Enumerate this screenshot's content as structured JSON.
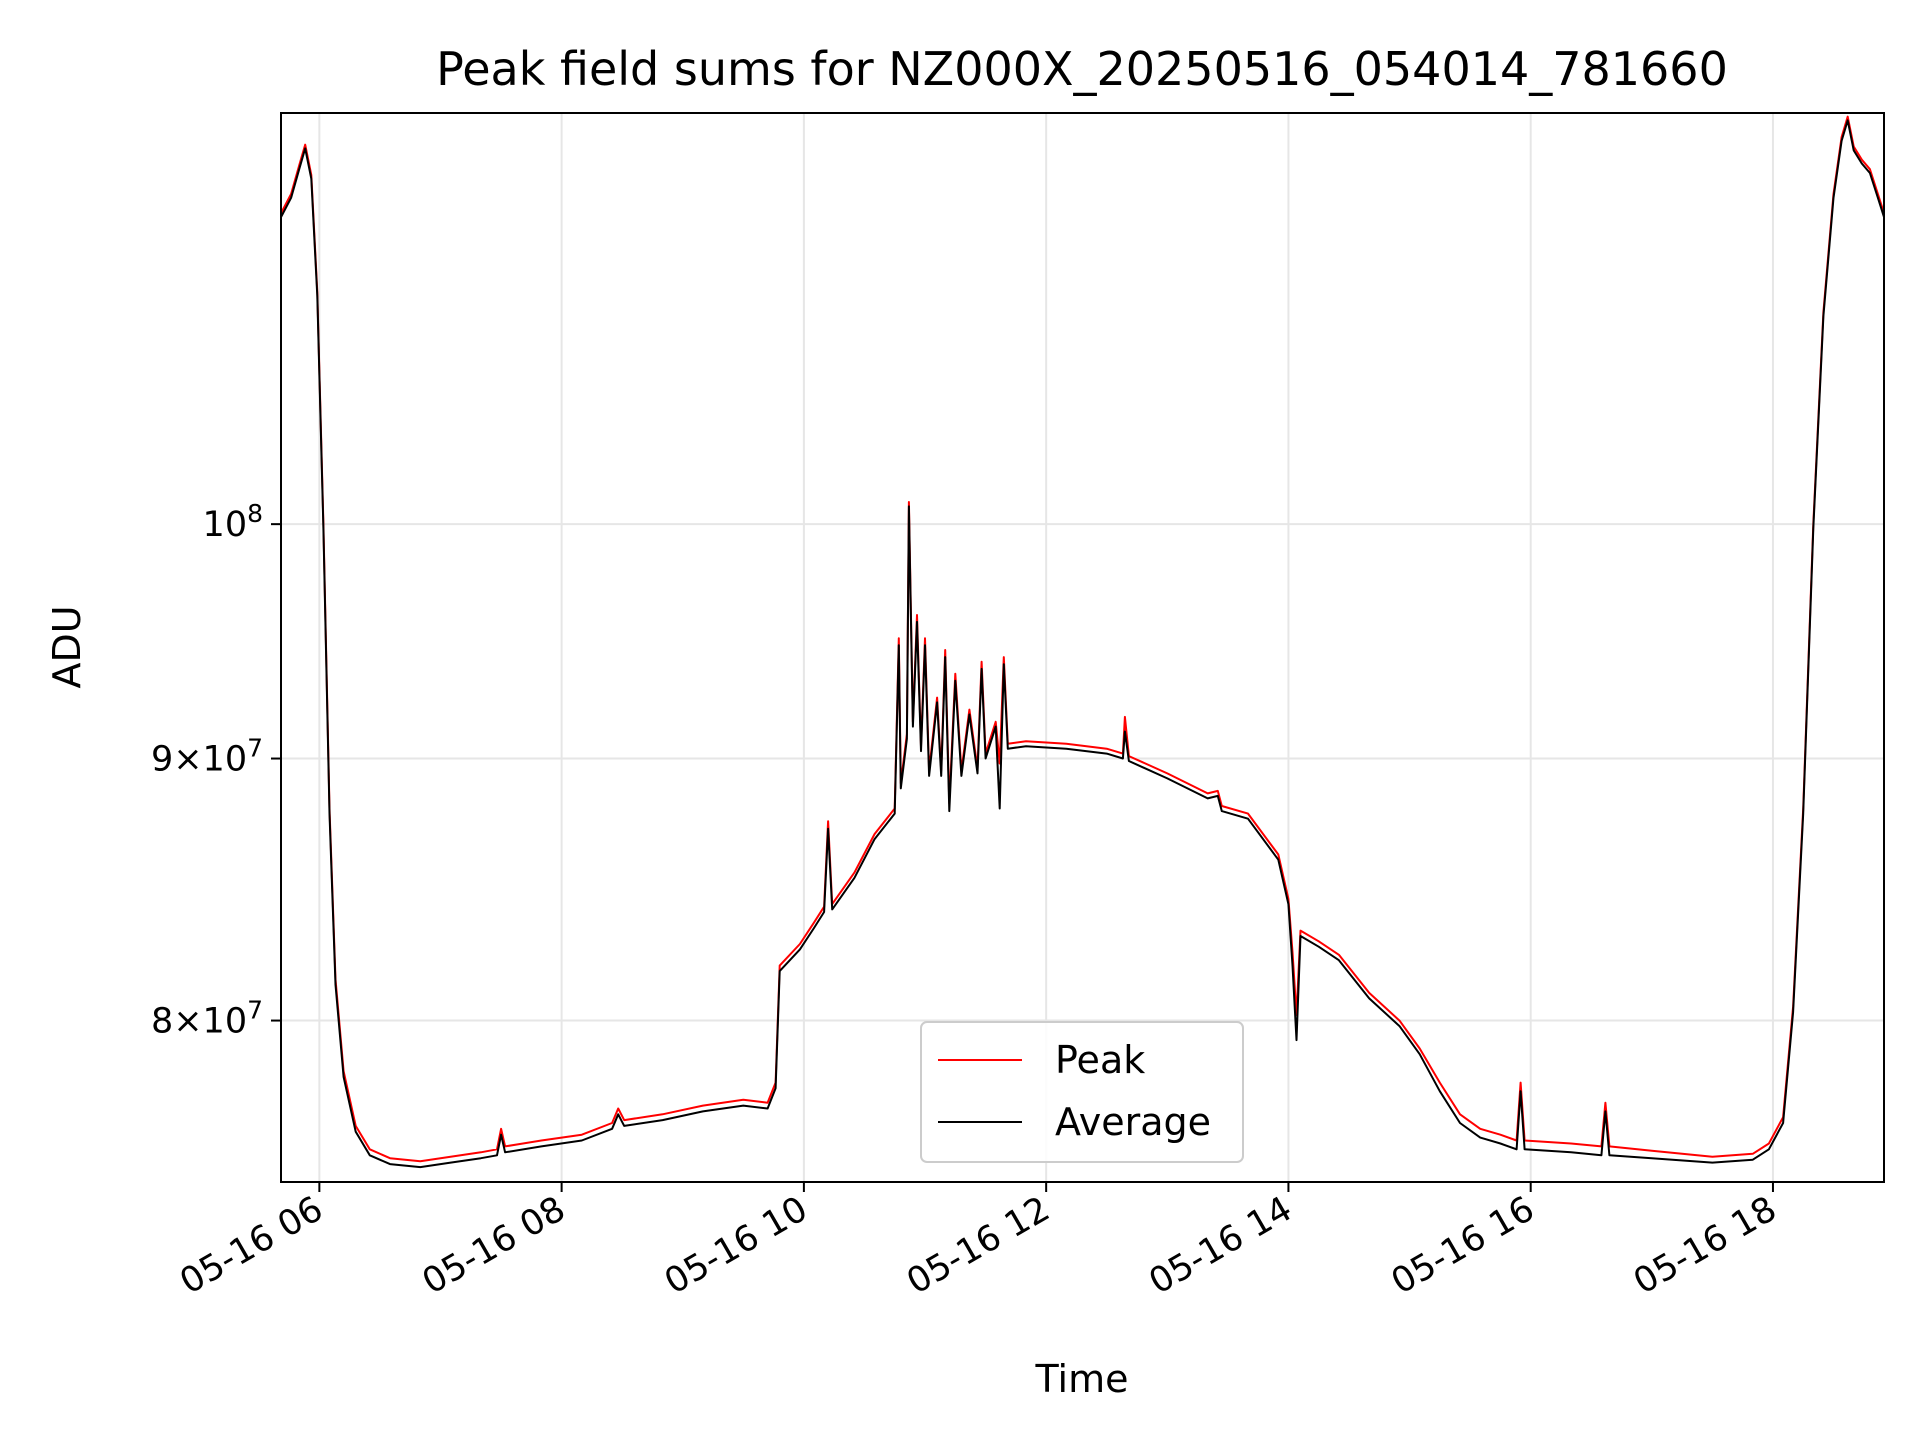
{
  "chart_data": {
    "type": "line",
    "title": "Peak field sums for NZ000X_20250516_054014_781660",
    "xlabel": "Time",
    "ylabel": "ADU",
    "y_scale": "log",
    "grid": true,
    "legend_position": "lower center",
    "xlim": [
      "2025-05-16 05:41",
      "2025-05-16 18:55"
    ],
    "ylim": [
      74400000,
      120300000
    ],
    "x_ticks": [
      {
        "value": "2025-05-16 06:00",
        "label": "05-16 06"
      },
      {
        "value": "2025-05-16 08:00",
        "label": "05-16 08"
      },
      {
        "value": "2025-05-16 10:00",
        "label": "05-16 10"
      },
      {
        "value": "2025-05-16 12:00",
        "label": "05-16 12"
      },
      {
        "value": "2025-05-16 14:00",
        "label": "05-16 14"
      },
      {
        "value": "2025-05-16 16:00",
        "label": "05-16 16"
      },
      {
        "value": "2025-05-16 18:00",
        "label": "05-16 18"
      }
    ],
    "y_ticks": [
      {
        "value": 80000000,
        "mantissa": "8",
        "exp": "7"
      },
      {
        "value": 90000000,
        "mantissa": "9",
        "exp": "7"
      },
      {
        "value": 100000000,
        "mantissa": "",
        "exp": "8"
      }
    ],
    "series": [
      {
        "name": "Peak",
        "color": "#ff0000",
        "points": [
          [
            "2025-05-16 05:41",
            115000000
          ],
          [
            "2025-05-16 05:46",
            116000000
          ],
          [
            "2025-05-16 05:50",
            117500000
          ],
          [
            "2025-05-16 05:53",
            118600000
          ],
          [
            "2025-05-16 05:56",
            117000000
          ],
          [
            "2025-05-16 05:59",
            111000000
          ],
          [
            "2025-05-16 06:02",
            100000000
          ],
          [
            "2025-05-16 06:05",
            88000000
          ],
          [
            "2025-05-16 06:08",
            81500000
          ],
          [
            "2025-05-16 06:12",
            78200000
          ],
          [
            "2025-05-16 06:18",
            76300000
          ],
          [
            "2025-05-16 06:25",
            75500000
          ],
          [
            "2025-05-16 06:35",
            75200000
          ],
          [
            "2025-05-16 06:50",
            75100000
          ],
          [
            "2025-05-16 07:05",
            75250000
          ],
          [
            "2025-05-16 07:20",
            75400000
          ],
          [
            "2025-05-16 07:28",
            75500000
          ],
          [
            "2025-05-16 07:30",
            76200000
          ],
          [
            "2025-05-16 07:32",
            75600000
          ],
          [
            "2025-05-16 07:50",
            75800000
          ],
          [
            "2025-05-16 08:10",
            76000000
          ],
          [
            "2025-05-16 08:25",
            76400000
          ],
          [
            "2025-05-16 08:28",
            76900000
          ],
          [
            "2025-05-16 08:31",
            76500000
          ],
          [
            "2025-05-16 08:50",
            76700000
          ],
          [
            "2025-05-16 09:10",
            77000000
          ],
          [
            "2025-05-16 09:30",
            77200000
          ],
          [
            "2025-05-16 09:42",
            77100000
          ],
          [
            "2025-05-16 09:46",
            77800000
          ],
          [
            "2025-05-16 09:48",
            82000000
          ],
          [
            "2025-05-16 09:58",
            82800000
          ],
          [
            "2025-05-16 10:05",
            83600000
          ],
          [
            "2025-05-16 10:10",
            84200000
          ],
          [
            "2025-05-16 10:12",
            87500000
          ],
          [
            "2025-05-16 10:14",
            84300000
          ],
          [
            "2025-05-16 10:25",
            85500000
          ],
          [
            "2025-05-16 10:35",
            87000000
          ],
          [
            "2025-05-16 10:45",
            88000000
          ],
          [
            "2025-05-16 10:47",
            95000000
          ],
          [
            "2025-05-16 10:48",
            89000000
          ],
          [
            "2025-05-16 10:51",
            91000000
          ],
          [
            "2025-05-16 10:52",
            101000000
          ],
          [
            "2025-05-16 10:54",
            91500000
          ],
          [
            "2025-05-16 10:56",
            96000000
          ],
          [
            "2025-05-16 10:58",
            90500000
          ],
          [
            "2025-05-16 11:00",
            95000000
          ],
          [
            "2025-05-16 11:02",
            89500000
          ],
          [
            "2025-05-16 11:06",
            92500000
          ],
          [
            "2025-05-16 11:08",
            89500000
          ],
          [
            "2025-05-16 11:10",
            94500000
          ],
          [
            "2025-05-16 11:12",
            88200000
          ],
          [
            "2025-05-16 11:15",
            93500000
          ],
          [
            "2025-05-16 11:18",
            89500000
          ],
          [
            "2025-05-16 11:22",
            92000000
          ],
          [
            "2025-05-16 11:26",
            89600000
          ],
          [
            "2025-05-16 11:28",
            94000000
          ],
          [
            "2025-05-16 11:30",
            90200000
          ],
          [
            "2025-05-16 11:35",
            91500000
          ],
          [
            "2025-05-16 11:37",
            89800000
          ],
          [
            "2025-05-16 11:39",
            94200000
          ],
          [
            "2025-05-16 11:41",
            90600000
          ],
          [
            "2025-05-16 11:50",
            90700000
          ],
          [
            "2025-05-16 12:10",
            90600000
          ],
          [
            "2025-05-16 12:30",
            90400000
          ],
          [
            "2025-05-16 12:38",
            90200000
          ],
          [
            "2025-05-16 12:39",
            91700000
          ],
          [
            "2025-05-16 12:41",
            90100000
          ],
          [
            "2025-05-16 13:00",
            89400000
          ],
          [
            "2025-05-16 13:20",
            88600000
          ],
          [
            "2025-05-16 13:25",
            88700000
          ],
          [
            "2025-05-16 13:27",
            88100000
          ],
          [
            "2025-05-16 13:40",
            87800000
          ],
          [
            "2025-05-16 13:55",
            86200000
          ],
          [
            "2025-05-16 14:00",
            84500000
          ],
          [
            "2025-05-16 14:02",
            82500000
          ],
          [
            "2025-05-16 14:04",
            80200000
          ],
          [
            "2025-05-16 14:06",
            83300000
          ],
          [
            "2025-05-16 14:15",
            82900000
          ],
          [
            "2025-05-16 14:25",
            82400000
          ],
          [
            "2025-05-16 14:40",
            81000000
          ],
          [
            "2025-05-16 14:55",
            80000000
          ],
          [
            "2025-05-16 15:05",
            79000000
          ],
          [
            "2025-05-16 15:15",
            77800000
          ],
          [
            "2025-05-16 15:25",
            76700000
          ],
          [
            "2025-05-16 15:35",
            76200000
          ],
          [
            "2025-05-16 15:45",
            76000000
          ],
          [
            "2025-05-16 15:53",
            75800000
          ],
          [
            "2025-05-16 15:55",
            77800000
          ],
          [
            "2025-05-16 15:57",
            75800000
          ],
          [
            "2025-05-16 16:20",
            75700000
          ],
          [
            "2025-05-16 16:35",
            75600000
          ],
          [
            "2025-05-16 16:37",
            77100000
          ],
          [
            "2025-05-16 16:39",
            75600000
          ],
          [
            "2025-05-16 17:00",
            75450000
          ],
          [
            "2025-05-16 17:30",
            75250000
          ],
          [
            "2025-05-16 17:50",
            75350000
          ],
          [
            "2025-05-16 17:58",
            75700000
          ],
          [
            "2025-05-16 18:05",
            76600000
          ],
          [
            "2025-05-16 18:10",
            80500000
          ],
          [
            "2025-05-16 18:15",
            88000000
          ],
          [
            "2025-05-16 18:20",
            100000000
          ],
          [
            "2025-05-16 18:25",
            110000000
          ],
          [
            "2025-05-16 18:30",
            116000000
          ],
          [
            "2025-05-16 18:34",
            119000000
          ],
          [
            "2025-05-16 18:37",
            120100000
          ],
          [
            "2025-05-16 18:40",
            118500000
          ],
          [
            "2025-05-16 18:44",
            117800000
          ],
          [
            "2025-05-16 18:48",
            117300000
          ],
          [
            "2025-05-16 18:52",
            116000000
          ],
          [
            "2025-05-16 18:55",
            115000000
          ]
        ]
      },
      {
        "name": "Average",
        "color": "#000000",
        "points": [
          [
            "2025-05-16 05:41",
            114800000
          ],
          [
            "2025-05-16 05:46",
            115800000
          ],
          [
            "2025-05-16 05:50",
            117300000
          ],
          [
            "2025-05-16 05:53",
            118400000
          ],
          [
            "2025-05-16 05:56",
            116800000
          ],
          [
            "2025-05-16 05:59",
            110800000
          ],
          [
            "2025-05-16 06:02",
            99800000
          ],
          [
            "2025-05-16 06:05",
            87800000
          ],
          [
            "2025-05-16 06:08",
            81300000
          ],
          [
            "2025-05-16 06:12",
            78000000
          ],
          [
            "2025-05-16 06:18",
            76100000
          ],
          [
            "2025-05-16 06:25",
            75300000
          ],
          [
            "2025-05-16 06:35",
            75000000
          ],
          [
            "2025-05-16 06:50",
            74900000
          ],
          [
            "2025-05-16 07:05",
            75050000
          ],
          [
            "2025-05-16 07:20",
            75200000
          ],
          [
            "2025-05-16 07:28",
            75300000
          ],
          [
            "2025-05-16 07:30",
            76000000
          ],
          [
            "2025-05-16 07:32",
            75400000
          ],
          [
            "2025-05-16 07:50",
            75600000
          ],
          [
            "2025-05-16 08:10",
            75800000
          ],
          [
            "2025-05-16 08:25",
            76200000
          ],
          [
            "2025-05-16 08:28",
            76700000
          ],
          [
            "2025-05-16 08:31",
            76300000
          ],
          [
            "2025-05-16 08:50",
            76500000
          ],
          [
            "2025-05-16 09:10",
            76800000
          ],
          [
            "2025-05-16 09:30",
            77000000
          ],
          [
            "2025-05-16 09:42",
            76900000
          ],
          [
            "2025-05-16 09:46",
            77600000
          ],
          [
            "2025-05-16 09:48",
            81800000
          ],
          [
            "2025-05-16 09:58",
            82600000
          ],
          [
            "2025-05-16 10:05",
            83400000
          ],
          [
            "2025-05-16 10:10",
            84000000
          ],
          [
            "2025-05-16 10:12",
            87200000
          ],
          [
            "2025-05-16 10:14",
            84100000
          ],
          [
            "2025-05-16 10:25",
            85300000
          ],
          [
            "2025-05-16 10:35",
            86800000
          ],
          [
            "2025-05-16 10:45",
            87800000
          ],
          [
            "2025-05-16 10:47",
            94700000
          ],
          [
            "2025-05-16 10:48",
            88800000
          ],
          [
            "2025-05-16 10:51",
            90800000
          ],
          [
            "2025-05-16 10:52",
            100800000
          ],
          [
            "2025-05-16 10:54",
            91300000
          ],
          [
            "2025-05-16 10:56",
            95700000
          ],
          [
            "2025-05-16 10:58",
            90300000
          ],
          [
            "2025-05-16 11:00",
            94700000
          ],
          [
            "2025-05-16 11:02",
            89300000
          ],
          [
            "2025-05-16 11:06",
            92300000
          ],
          [
            "2025-05-16 11:08",
            89300000
          ],
          [
            "2025-05-16 11:10",
            94200000
          ],
          [
            "2025-05-16 11:12",
            87900000
          ],
          [
            "2025-05-16 11:15",
            93200000
          ],
          [
            "2025-05-16 11:18",
            89300000
          ],
          [
            "2025-05-16 11:22",
            91800000
          ],
          [
            "2025-05-16 11:26",
            89400000
          ],
          [
            "2025-05-16 11:28",
            93700000
          ],
          [
            "2025-05-16 11:30",
            90000000
          ],
          [
            "2025-05-16 11:35",
            91300000
          ],
          [
            "2025-05-16 11:37",
            88000000
          ],
          [
            "2025-05-16 11:39",
            93900000
          ],
          [
            "2025-05-16 11:41",
            90400000
          ],
          [
            "2025-05-16 11:50",
            90500000
          ],
          [
            "2025-05-16 12:10",
            90400000
          ],
          [
            "2025-05-16 12:30",
            90200000
          ],
          [
            "2025-05-16 12:38",
            90000000
          ],
          [
            "2025-05-16 12:39",
            91100000
          ],
          [
            "2025-05-16 12:41",
            89900000
          ],
          [
            "2025-05-16 13:00",
            89200000
          ],
          [
            "2025-05-16 13:20",
            88400000
          ],
          [
            "2025-05-16 13:25",
            88500000
          ],
          [
            "2025-05-16 13:27",
            87900000
          ],
          [
            "2025-05-16 13:40",
            87600000
          ],
          [
            "2025-05-16 13:55",
            86000000
          ],
          [
            "2025-05-16 14:00",
            84300000
          ],
          [
            "2025-05-16 14:02",
            82000000
          ],
          [
            "2025-05-16 14:04",
            79300000
          ],
          [
            "2025-05-16 14:06",
            83100000
          ],
          [
            "2025-05-16 14:15",
            82700000
          ],
          [
            "2025-05-16 14:25",
            82200000
          ],
          [
            "2025-05-16 14:40",
            80800000
          ],
          [
            "2025-05-16 14:55",
            79800000
          ],
          [
            "2025-05-16 15:05",
            78800000
          ],
          [
            "2025-05-16 15:15",
            77500000
          ],
          [
            "2025-05-16 15:25",
            76400000
          ],
          [
            "2025-05-16 15:35",
            75900000
          ],
          [
            "2025-05-16 15:45",
            75700000
          ],
          [
            "2025-05-16 15:53",
            75500000
          ],
          [
            "2025-05-16 15:55",
            77500000
          ],
          [
            "2025-05-16 15:57",
            75500000
          ],
          [
            "2025-05-16 16:20",
            75400000
          ],
          [
            "2025-05-16 16:35",
            75300000
          ],
          [
            "2025-05-16 16:37",
            76800000
          ],
          [
            "2025-05-16 16:39",
            75300000
          ],
          [
            "2025-05-16 17:00",
            75200000
          ],
          [
            "2025-05-16 17:30",
            75050000
          ],
          [
            "2025-05-16 17:50",
            75150000
          ],
          [
            "2025-05-16 17:58",
            75500000
          ],
          [
            "2025-05-16 18:05",
            76400000
          ],
          [
            "2025-05-16 18:10",
            80300000
          ],
          [
            "2025-05-16 18:15",
            87800000
          ],
          [
            "2025-05-16 18:20",
            99800000
          ],
          [
            "2025-05-16 18:25",
            109800000
          ],
          [
            "2025-05-16 18:30",
            115800000
          ],
          [
            "2025-05-16 18:34",
            118800000
          ],
          [
            "2025-05-16 18:37",
            119900000
          ],
          [
            "2025-05-16 18:40",
            118300000
          ],
          [
            "2025-05-16 18:44",
            117600000
          ],
          [
            "2025-05-16 18:48",
            117100000
          ],
          [
            "2025-05-16 18:52",
            115800000
          ],
          [
            "2025-05-16 18:55",
            114800000
          ]
        ]
      }
    ]
  }
}
